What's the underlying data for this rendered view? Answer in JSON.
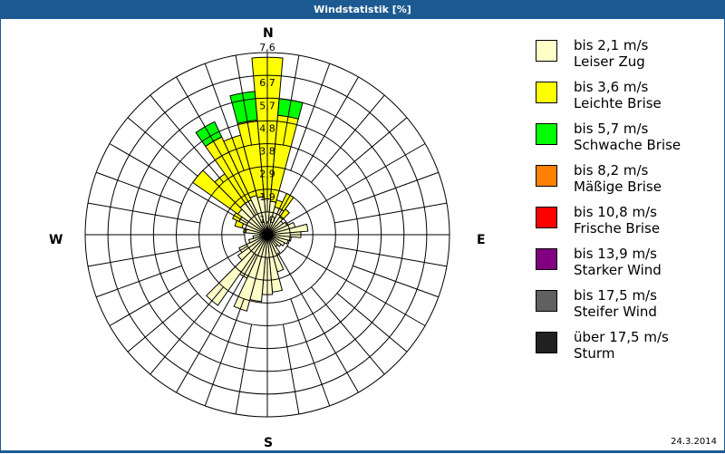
{
  "window": {
    "title": "Windstatistik [%]"
  },
  "compass": {
    "n": "N",
    "e": "E",
    "s": "S",
    "w": "W"
  },
  "footer": {
    "date": "24.3.2014"
  },
  "legend": [
    {
      "range": "bis 2,1 m/s",
      "name": "Leiser Zug",
      "color": "#ffffc8"
    },
    {
      "range": "bis 3,6 m/s",
      "name": "Leichte Brise",
      "color": "#ffff00"
    },
    {
      "range": "bis 5,7 m/s",
      "name": "Schwache Brise",
      "color": "#00ff00"
    },
    {
      "range": "bis 8,2 m/s",
      "name": "Mäßige Brise",
      "color": "#ff8000"
    },
    {
      "range": "bis 10,8 m/s",
      "name": "Frische Brise",
      "color": "#ff0000"
    },
    {
      "range": "bis 13,9 m/s",
      "name": "Starker Wind",
      "color": "#800080"
    },
    {
      "range": "bis 17,5 m/s",
      "name": "Steifer Wind",
      "color": "#606060"
    },
    {
      "range": "über 17,5 m/s",
      "name": "Sturm",
      "color": "#202020"
    }
  ],
  "chart_data": {
    "type": "wind-rose",
    "title": "Windstatistik [%]",
    "unit": "%",
    "ring_labels": [
      "1,0",
      "1,9",
      "2,9",
      "3,8",
      "4,8",
      "5,7",
      "6,7",
      "7,6"
    ],
    "rmax": 7.6,
    "sector_width_deg": 10,
    "directions_deg": [
      0,
      10,
      20,
      30,
      40,
      50,
      60,
      70,
      80,
      90,
      100,
      110,
      120,
      130,
      140,
      150,
      160,
      170,
      180,
      190,
      200,
      210,
      220,
      230,
      240,
      250,
      260,
      270,
      280,
      290,
      300,
      310,
      320,
      330,
      340,
      350
    ],
    "series": [
      {
        "name": "bis 2,1 m/s",
        "values": [
          1.5,
          1.4,
          1.2,
          1.2,
          0.9,
          0.8,
          0.9,
          1.2,
          1.7,
          1.4,
          1.0,
          0.9,
          0.8,
          0.7,
          0.6,
          0.9,
          1.6,
          2.4,
          2.5,
          2.8,
          3.3,
          2.0,
          3.6,
          1.5,
          1.3,
          0.8,
          0.6,
          0.3,
          0.9,
          1.1,
          1.3,
          1.5,
          1.6,
          1.6,
          1.7,
          1.6
        ]
      },
      {
        "name": "bis 3,6 m/s",
        "values": [
          5.9,
          3.6,
          0.3,
          0.7,
          0.4,
          0,
          0,
          0,
          0,
          0,
          0,
          0,
          0,
          0,
          0,
          0,
          0,
          0,
          0,
          0,
          0,
          0,
          0,
          0,
          0,
          0,
          0,
          0,
          0.1,
          0.3,
          0.3,
          2.3,
          1.5,
          2.9,
          2.6,
          3.2
        ]
      },
      {
        "name": "bis 5,7 m/s",
        "values": [
          0,
          0.7,
          0,
          0,
          0,
          0,
          0,
          0,
          0,
          0,
          0,
          0,
          0,
          0,
          0,
          0,
          0,
          0,
          0,
          0,
          0,
          0,
          0,
          0,
          0,
          0,
          0,
          0,
          0,
          0,
          0,
          0,
          0,
          0.7,
          0,
          1.2
        ]
      },
      {
        "name": "bis 8,2 m/s",
        "values": [
          0,
          0,
          0,
          0,
          0,
          0,
          0,
          0,
          0,
          0,
          0,
          0,
          0,
          0,
          0,
          0,
          0,
          0,
          0,
          0,
          0,
          0,
          0,
          0,
          0,
          0,
          0,
          0,
          0,
          0,
          0,
          0,
          0,
          0,
          0,
          0
        ]
      },
      {
        "name": "bis 10,8 m/s",
        "values": [
          0,
          0,
          0,
          0,
          0,
          0,
          0,
          0,
          0,
          0,
          0,
          0,
          0,
          0,
          0,
          0,
          0,
          0,
          0,
          0,
          0,
          0,
          0,
          0,
          0,
          0,
          0,
          0,
          0,
          0,
          0,
          0,
          0,
          0,
          0,
          0
        ]
      },
      {
        "name": "bis 13,9 m/s",
        "values": [
          0,
          0,
          0,
          0,
          0,
          0,
          0,
          0,
          0,
          0,
          0,
          0,
          0,
          0,
          0,
          0,
          0,
          0,
          0,
          0,
          0,
          0,
          0,
          0,
          0,
          0,
          0,
          0,
          0,
          0,
          0,
          0,
          0,
          0,
          0,
          0
        ]
      },
      {
        "name": "bis 17,5 m/s",
        "values": [
          0,
          0,
          0,
          0,
          0,
          0,
          0,
          0,
          0,
          0,
          0,
          0,
          0,
          0,
          0,
          0,
          0,
          0,
          0,
          0,
          0,
          0,
          0,
          0,
          0,
          0,
          0,
          0,
          0,
          0,
          0,
          0,
          0,
          0,
          0,
          0
        ]
      },
      {
        "name": "über 17,5 m/s",
        "values": [
          0,
          0,
          0,
          0,
          0,
          0,
          0,
          0,
          0,
          0,
          0,
          0,
          0,
          0,
          0,
          0,
          0,
          0,
          0,
          0,
          0,
          0,
          0,
          0,
          0,
          0,
          0,
          0,
          0,
          0,
          0,
          0,
          0,
          0,
          0,
          0
        ]
      }
    ]
  }
}
